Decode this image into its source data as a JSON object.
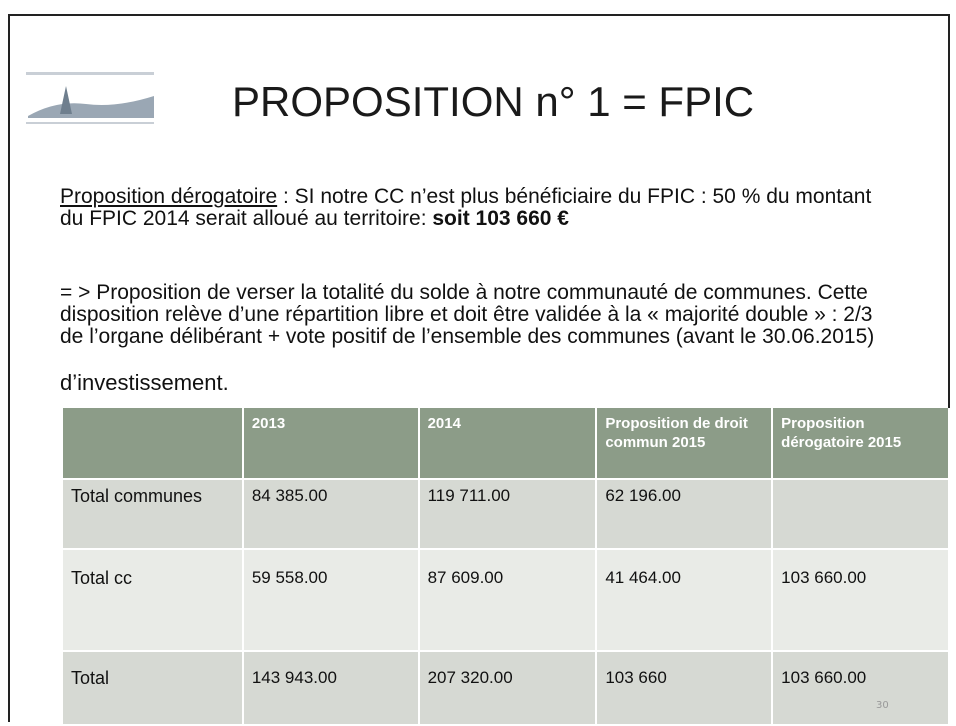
{
  "title": "PROPOSITION n° 1 = FPIC",
  "paragraphs": [
    {
      "underlined": "Proposition dérogatoire",
      "text": " : SI notre CC n’est plus bénéficiaire du FPIC : 50 % du montant du FPIC 2014 serait  alloué au territoire: ",
      "bold": "soit 103 660 €"
    },
    {
      "text": "= > Proposition de verser la totalité du solde à notre communauté de communes. Cette disposition relève d’une répartition libre et doit être validée à la « majorité double » :  2/3 de l’organe délibérant + vote positif de l’ensemble des communes (avant le 30.06.2015)"
    },
    {
      "text": "d’investissement."
    }
  ],
  "table": {
    "header": [
      null,
      "2013",
      "2014",
      "Proposition de droit commun 2015",
      "Proposition dérogatoire 2015"
    ],
    "rows": [
      [
        "Total communes",
        "84 385.00",
        "119 711.00",
        "62 196.00",
        null
      ],
      [
        "Total cc",
        "59 558.00",
        "87 609.00",
        "41 464.00",
        "103 660.00"
      ],
      [
        "Total",
        "143 943.00",
        "207 320.00",
        "103 660",
        "103 660.00"
      ]
    ]
  },
  "page_number": "30"
}
